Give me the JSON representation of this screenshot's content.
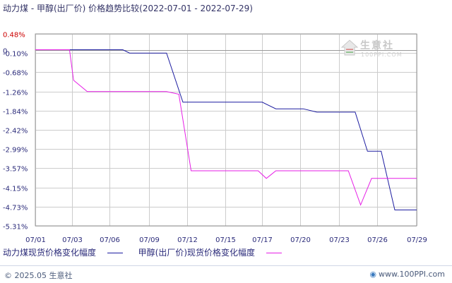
{
  "title": "动力煤 - 甲醇(出厂价) 价格趋势比较(2022-07-01 - 2022-07-29)",
  "watermark": {
    "brand": "生意社",
    "url": "100PPI.COM"
  },
  "footer": {
    "copyright": "© 2025.05 生意社",
    "url": "www.100PPI.com"
  },
  "colors": {
    "series1": "#1c1ca0",
    "series2": "#e61ee6",
    "zero_label": "#cc0000",
    "axis_text": "#2b2b7a",
    "grid": "#cccccc"
  },
  "chart_data": {
    "type": "line",
    "title": "动力煤 - 甲醇(出厂价) 价格趋势比较(2022-07-01 - 2022-07-29)",
    "xlabel": "",
    "ylabel": "",
    "ylim": [
      -5.31,
      0.48
    ],
    "y_ticks": [
      "0.48%",
      "-0.10%",
      "-0.68%",
      "-1.26%",
      "-1.84%",
      "-2.42%",
      "-2.99%",
      "-3.57%",
      "-4.15%",
      "-4.73%",
      "-5.31%"
    ],
    "y_tick_values": [
      0.48,
      -0.1,
      -0.68,
      -1.26,
      -1.84,
      -2.42,
      -2.99,
      -3.57,
      -4.15,
      -4.73,
      -5.31
    ],
    "zero_label": "0",
    "x_ticks": [
      "07/01",
      "07/03",
      "07/06",
      "07/09",
      "07/12",
      "07/15",
      "07/17",
      "07/20",
      "07/23",
      "07/26",
      "07/29"
    ],
    "x_tick_days": [
      1,
      3.7,
      6.4,
      9.3,
      12.1,
      14.9,
      17.6,
      20.4,
      23.2,
      26,
      28.9
    ],
    "grid": true,
    "legend_position": "bottom",
    "series": [
      {
        "name": "动力煤现货价格变化幅度",
        "color": "#1c1ca0",
        "points": [
          [
            1,
            0.0
          ],
          [
            7.4,
            0.0
          ],
          [
            7.9,
            -0.1
          ],
          [
            10.6,
            -0.1
          ],
          [
            11.8,
            -1.58
          ],
          [
            17.6,
            -1.58
          ],
          [
            18.6,
            -1.78
          ],
          [
            20.6,
            -1.78
          ],
          [
            21.6,
            -1.88
          ],
          [
            24.4,
            -1.88
          ],
          [
            25.3,
            -3.06
          ],
          [
            26.3,
            -3.06
          ],
          [
            27.3,
            -4.83
          ],
          [
            28.9,
            -4.83
          ]
        ]
      },
      {
        "name": "甲醇(出厂价)现货价格变化幅度",
        "color": "#e61ee6",
        "points": [
          [
            1,
            0.0
          ],
          [
            3.5,
            0.0
          ],
          [
            3.8,
            -0.92
          ],
          [
            4.8,
            -1.26
          ],
          [
            10.6,
            -1.26
          ],
          [
            11.5,
            -1.34
          ],
          [
            12.4,
            -3.65
          ],
          [
            17.3,
            -3.65
          ],
          [
            17.9,
            -3.88
          ],
          [
            18.6,
            -3.65
          ],
          [
            23.9,
            -3.65
          ],
          [
            24.8,
            -4.68
          ],
          [
            25.6,
            -3.88
          ],
          [
            28.9,
            -3.88
          ]
        ]
      }
    ]
  }
}
